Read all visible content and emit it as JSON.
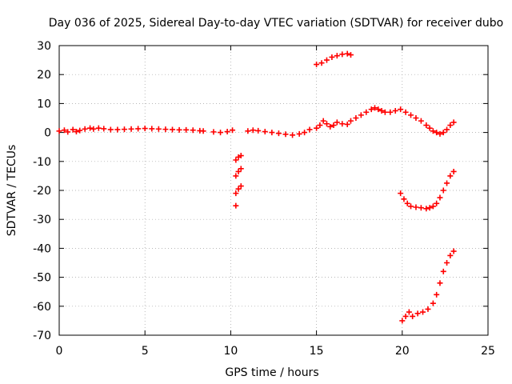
{
  "chart_data": {
    "type": "scatter",
    "title": "Day 036 of 2025, Sidereal Day-to-day VTEC variation (SDTVAR) for receiver dubo",
    "xlabel": "GPS time / hours",
    "ylabel": "SDTVAR / TECUs",
    "xlim": [
      0,
      25
    ],
    "ylim": [
      -70,
      30
    ],
    "xticks": [
      0,
      5,
      10,
      15,
      20,
      25
    ],
    "yticks": [
      -70,
      -60,
      -50,
      -40,
      -30,
      -20,
      -10,
      0,
      10,
      20,
      30
    ],
    "grid": true,
    "marker": "+",
    "series": [
      {
        "name": "SDTVAR",
        "color": "#ff0000",
        "x": [
          0.0,
          0.3,
          0.5,
          0.8,
          1.0,
          1.2,
          1.5,
          1.8,
          2.0,
          2.3,
          2.6,
          3.0,
          3.4,
          3.8,
          4.2,
          4.6,
          5.0,
          5.4,
          5.8,
          6.2,
          6.6,
          7.0,
          7.4,
          7.8,
          8.2,
          8.4,
          9.0,
          9.4,
          9.8,
          10.1,
          10.3,
          10.45,
          10.6,
          10.3,
          10.45,
          10.6,
          10.3,
          10.45,
          10.6,
          10.3,
          11.0,
          11.3,
          11.6,
          12.0,
          12.4,
          12.8,
          13.2,
          13.6,
          14.0,
          14.3,
          14.6,
          15.0,
          15.2,
          15.4,
          15.6,
          15.8,
          16.0,
          16.2,
          16.5,
          16.8,
          17.0,
          17.3,
          17.6,
          17.9,
          18.2,
          18.4,
          18.6,
          18.8,
          19.0,
          19.3,
          19.6,
          19.9,
          20.2,
          20.5,
          20.8,
          21.1,
          21.4,
          21.6,
          21.8,
          22.0,
          22.2,
          22.4,
          22.6,
          22.8,
          23.0,
          15.0,
          15.3,
          15.6,
          15.9,
          16.2,
          16.5,
          16.8,
          17.0,
          19.9,
          20.1,
          20.3,
          20.5,
          20.8,
          21.1,
          21.4,
          21.6,
          21.8,
          22.0,
          22.2,
          22.4,
          22.6,
          22.8,
          23.0,
          20.0,
          20.2,
          20.4,
          20.6,
          20.9,
          21.2,
          21.5,
          21.8,
          22.0,
          22.2,
          22.4,
          22.6,
          22.8,
          23.0
        ],
        "y": [
          0.5,
          0.8,
          0.2,
          1.0,
          0.3,
          0.7,
          1.2,
          1.5,
          1.2,
          1.5,
          1.3,
          1.0,
          1.0,
          1.1,
          1.2,
          1.3,
          1.4,
          1.3,
          1.2,
          1.1,
          1.0,
          0.9,
          0.9,
          0.8,
          0.6,
          0.5,
          0.2,
          0.0,
          0.3,
          0.8,
          -9.5,
          -8.5,
          -8.0,
          -15.0,
          -13.5,
          -12.5,
          -21.0,
          -19.5,
          -18.5,
          -25.3,
          0.5,
          0.8,
          0.6,
          0.3,
          0.0,
          -0.3,
          -0.6,
          -0.9,
          -0.5,
          0.0,
          1.0,
          1.5,
          2.5,
          4.0,
          3.0,
          2.0,
          2.5,
          3.5,
          3.0,
          2.8,
          4.0,
          5.0,
          6.0,
          7.0,
          8.0,
          8.5,
          8.0,
          7.5,
          7.0,
          7.0,
          7.5,
          8.0,
          7.0,
          6.0,
          5.0,
          4.0,
          2.5,
          1.5,
          0.5,
          0.0,
          -0.5,
          0.0,
          1.0,
          2.5,
          3.5,
          23.5,
          24.0,
          25.0,
          26.0,
          26.5,
          27.0,
          27.2,
          26.8,
          -21.0,
          -23.0,
          -24.5,
          -25.5,
          -25.8,
          -26.0,
          -26.3,
          -26.0,
          -25.5,
          -24.5,
          -22.5,
          -20.0,
          -17.5,
          -15.0,
          -13.5,
          -65.0,
          -63.5,
          -62.0,
          -63.5,
          -62.5,
          -62.0,
          -61.0,
          -59.0,
          -56.0,
          -52.0,
          -48.0,
          -45.0,
          -42.5,
          -41.0
        ]
      }
    ]
  }
}
